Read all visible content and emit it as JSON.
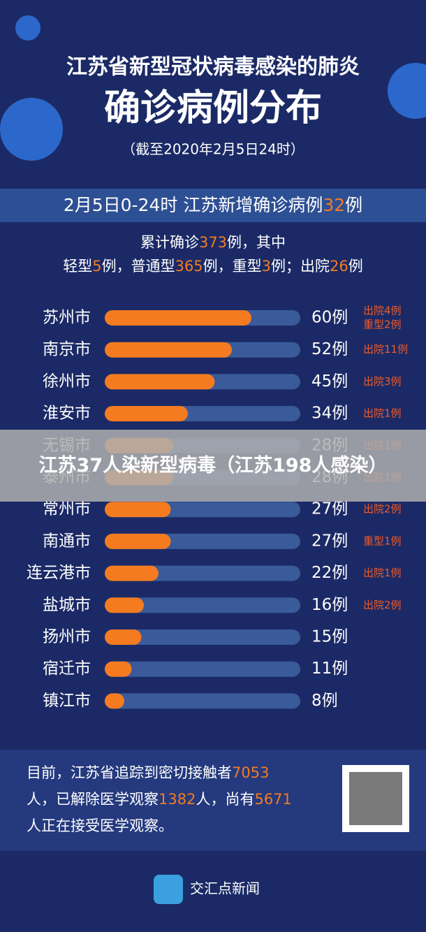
{
  "header": {
    "title": "江苏省新型冠状病毒感染的肺炎",
    "subtitle": "确诊病例分布",
    "date": "（截至2020年2月5日24时）"
  },
  "new_cases": [
    "2月5日0-24时  江苏新增确诊病例",
    "32",
    "例"
  ],
  "summary": [
    [
      "累计确诊",
      "373",
      "例，其中"
    ],
    [
      "轻型",
      "5",
      "例，普通型",
      "365",
      "例，重型",
      "3",
      "例；出院",
      "26",
      "例"
    ]
  ],
  "chart_data": {
    "type": "bar",
    "categories": [
      "苏州市",
      "南京市",
      "徐州市",
      "淮安市",
      "无锡市",
      "泰州市",
      "常州市",
      "南通市",
      "连云港市",
      "盐城市",
      "扬州市",
      "宿迁市",
      "镇江市"
    ],
    "values": [
      60,
      52,
      45,
      34,
      28,
      28,
      27,
      27,
      22,
      16,
      15,
      11,
      8
    ],
    "value_labels": [
      "60例",
      "52例",
      "45例",
      "34例",
      "28例",
      "28例",
      "27例",
      "27例",
      "22例",
      "16例",
      "15例",
      "11例",
      "8例"
    ],
    "notes": [
      [
        "出院4例",
        "重型2例"
      ],
      [
        "出院11例"
      ],
      [
        "出院3例"
      ],
      [
        "出院1例"
      ],
      [
        "出院1例"
      ],
      [
        "出院1例"
      ],
      [
        "出院2例"
      ],
      [
        "重型1例"
      ],
      [
        "出院1例"
      ],
      [
        "出院2例"
      ],
      null,
      null,
      null
    ],
    "xlim": [
      0,
      80
    ],
    "color": "#f47b20",
    "track_color": "#3a5a9a"
  },
  "contacts": [
    [
      "目前，江苏省追踪到密切接触者",
      "7053"
    ],
    [
      "人，已解除医学观察",
      "1382",
      "人，尚有",
      "5671"
    ],
    [
      "人正在接受医学观察。"
    ]
  ],
  "logo": "交汇点新闻",
  "overlay": "江苏37人染新型病毒（江苏198人感染）"
}
